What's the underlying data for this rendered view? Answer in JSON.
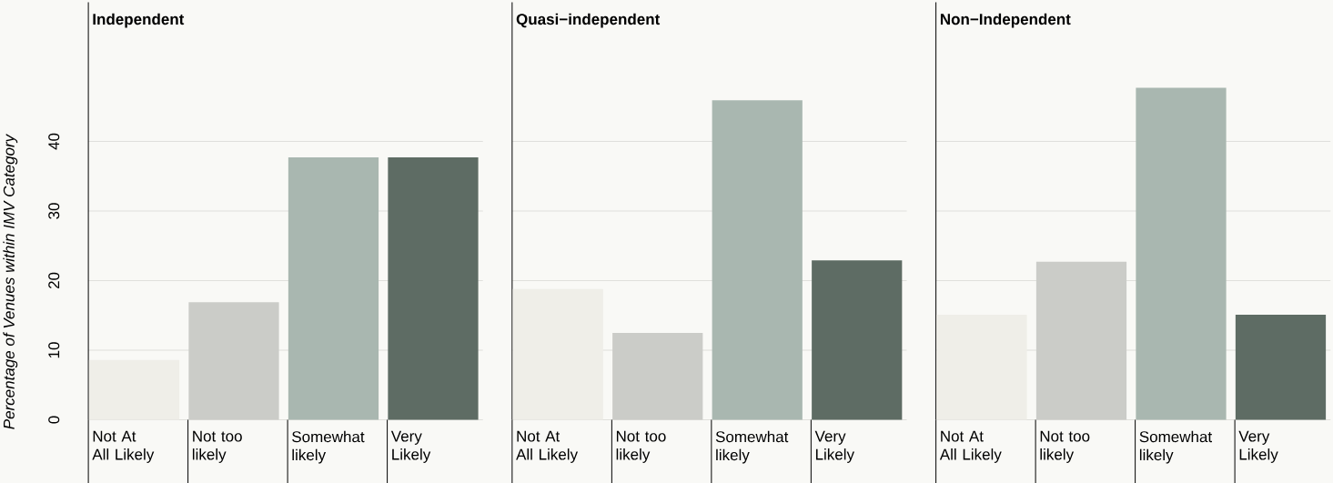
{
  "chart_data": [
    {
      "type": "bar",
      "title": "Independent",
      "ylabel": "Percentage of Venues within IMV Category",
      "categories": [
        "Not At All Likely",
        "Not too likely",
        "Somewhat likely",
        "Very Likely"
      ],
      "values": [
        8.6,
        16.9,
        37.7,
        37.7
      ],
      "colors": [
        "#efeee8",
        "#cbccc8",
        "#a9b7b0",
        "#5e6c64"
      ],
      "ylim": [
        0,
        60
      ],
      "yticks": [
        0,
        10,
        20,
        30,
        40
      ],
      "grid": "y"
    },
    {
      "type": "bar",
      "title": "Quasi−independent",
      "categories": [
        "Not At All Likely",
        "Not too likely",
        "Somewhat likely",
        "Very Likely"
      ],
      "values": [
        18.8,
        12.5,
        45.9,
        22.9
      ],
      "colors": [
        "#efeee8",
        "#cbccc8",
        "#a9b7b0",
        "#5e6c64"
      ],
      "ylim": [
        0,
        60
      ],
      "yticks": [
        0,
        10,
        20,
        30,
        40
      ],
      "grid": "y",
      "tick_labels": "x"
    },
    {
      "type": "bar",
      "title": "Non−Independent",
      "categories": [
        "Not At All Likely",
        "Not too likely",
        "Somewhat likely",
        "Very Likely"
      ],
      "values": [
        15.1,
        22.7,
        47.7,
        15.1
      ],
      "colors": [
        "#efeee8",
        "#cbccc8",
        "#a9b7b0",
        "#5e6c64"
      ],
      "ylim": [
        0,
        60
      ],
      "yticks": [
        0,
        10,
        20,
        30,
        40
      ],
      "grid": "y",
      "tick_labels": "x"
    }
  ]
}
